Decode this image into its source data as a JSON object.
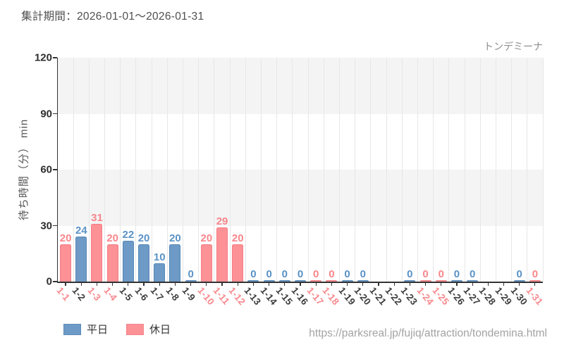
{
  "header": {
    "title": "集計期間：2026-01-01～2026-01-31"
  },
  "chart": {
    "attraction_label": "トンデミーナ",
    "y_axis_title": "待ち時間（分） min"
  },
  "legend": {
    "items": [
      {
        "key": "weekday",
        "label": "平日",
        "color": "#6d9ac6"
      },
      {
        "key": "holiday",
        "label": "休日",
        "color": "#fc9196"
      }
    ]
  },
  "footer": {
    "url": "https://parksreal.jp/fujiq/attraction/tondemina.html"
  },
  "colors": {
    "weekday_bar": "#6d9ac6",
    "weekday_bar_border": "#5587b8",
    "weekday_text": "#5a92c6",
    "holiday_bar": "#fc9196",
    "holiday_bar_border": "#f47d83",
    "holiday_text": "#f8868b",
    "band_gray": "#f4f4f5",
    "gridline": "#e7e7e9",
    "axis": "#333333",
    "tick_label": "#2e2e2e",
    "title_text": "#4f4f4f",
    "muted_text": "#8f8f8f",
    "url_text": "#a3a3a3"
  },
  "chart_data": {
    "type": "bar",
    "title": "集計期間：2026-01-01～2026-01-31",
    "subtitle": "トンデミーナ",
    "xlabel": "",
    "ylabel": "待ち時間（分） min",
    "ylim": [
      0,
      120
    ],
    "y_ticks": [
      0,
      30,
      60,
      90,
      120
    ],
    "grid": "vertical-gridlines with alternating horizontal gray bands",
    "legend_position": "bottom-left",
    "categories": [
      "1-1",
      "1-2",
      "1-3",
      "1-4",
      "1-5",
      "1-6",
      "1-7",
      "1-8",
      "1-9",
      "1-10",
      "1-11",
      "1-12",
      "1-13",
      "1-14",
      "1-15",
      "1-16",
      "1-17",
      "1-18",
      "1-19",
      "1-20",
      "1-21",
      "1-22",
      "1-23",
      "1-24",
      "1-25",
      "1-26",
      "1-27",
      "1-28",
      "1-29",
      "1-30",
      "1-31"
    ],
    "values": [
      20,
      24,
      31,
      20,
      22,
      20,
      10,
      20,
      0,
      20,
      29,
      20,
      0,
      0,
      0,
      0,
      0,
      0,
      0,
      0,
      null,
      null,
      0,
      0,
      0,
      0,
      0,
      null,
      null,
      0,
      0
    ],
    "day_types": [
      "holiday",
      "weekday",
      "holiday",
      "holiday",
      "weekday",
      "weekday",
      "weekday",
      "weekday",
      "weekday",
      "holiday",
      "holiday",
      "holiday",
      "weekday",
      "weekday",
      "weekday",
      "weekday",
      "holiday",
      "holiday",
      "weekday",
      "weekday",
      "weekday",
      "weekday",
      "weekday",
      "holiday",
      "holiday",
      "weekday",
      "weekday",
      "weekday",
      "weekday",
      "weekday",
      "holiday"
    ],
    "series": [
      {
        "name": "平日",
        "type_key": "weekday"
      },
      {
        "name": "休日",
        "type_key": "holiday"
      }
    ]
  }
}
